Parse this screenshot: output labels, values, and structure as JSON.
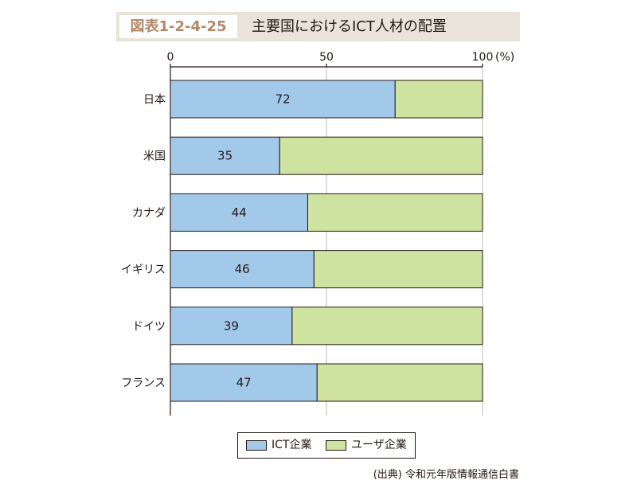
{
  "header": {
    "figure_label": "図表1-2-4-25",
    "figure_title": "主要国におけるICT人材の配置"
  },
  "colors": {
    "ict": "#a3c9ea",
    "user": "#cfe3a1",
    "title_bg": "#eae3da",
    "label_color": "#b38867"
  },
  "chart_data": {
    "type": "bar",
    "orientation": "horizontal",
    "stacked": true,
    "percent_scale": true,
    "categories": [
      "日本",
      "米国",
      "カナダ",
      "イギリス",
      "ドイツ",
      "フランス"
    ],
    "series": [
      {
        "name": "ICT企業",
        "values": [
          72,
          35,
          44,
          46,
          39,
          47
        ]
      },
      {
        "name": "ユーザ企業",
        "values": [
          28,
          65,
          56,
          54,
          61,
          53
        ]
      }
    ],
    "xlim": [
      0,
      100
    ],
    "xticks": [
      0,
      50,
      100
    ],
    "x_tick_labels": [
      "0",
      "50",
      "100"
    ],
    "x_unit_label": "(%)",
    "grid": true,
    "legend_position": "bottom"
  },
  "legend": {
    "items": [
      "ICT企業",
      "ユーザ企業"
    ]
  },
  "source": "(出典) 令和元年版情報通信白書"
}
